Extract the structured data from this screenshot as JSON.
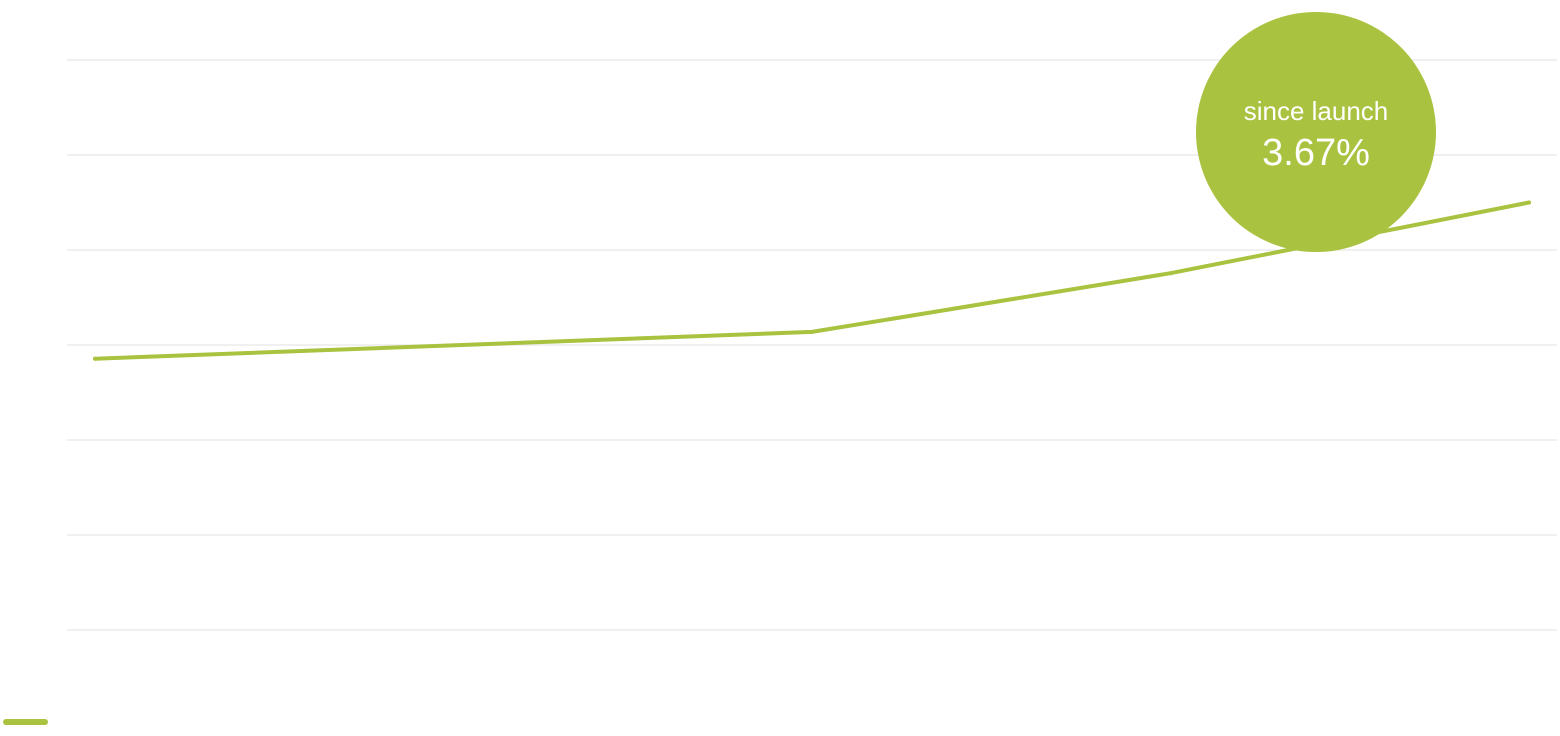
{
  "colors": {
    "line": "#a9c23f",
    "gridline": "#ececec",
    "bubble": "#a9c23f",
    "bubble_text": "#ffffff",
    "background": "#ffffff"
  },
  "chart_data": {
    "type": "line",
    "title": "",
    "xlabel": "",
    "ylabel": "",
    "grid": true,
    "gridlines_count": 7,
    "x": [
      0,
      1,
      1.5,
      2
    ],
    "ylim": [
      0,
      100
    ],
    "series": [
      {
        "values": [
          47.6,
          52.3,
          62.6,
          75.0
        ]
      }
    ],
    "annotation": {
      "label": "since launch",
      "value": "3.67%"
    },
    "legend": {
      "placement": "bottom-left"
    }
  }
}
